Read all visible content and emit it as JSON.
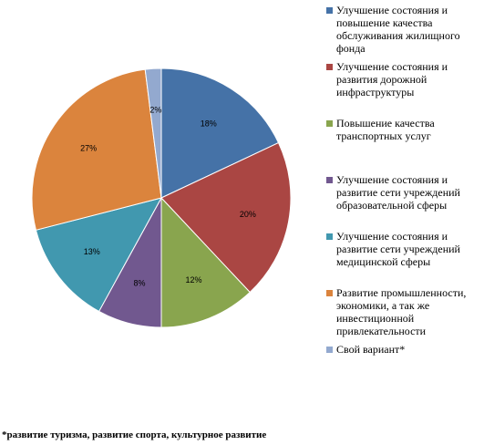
{
  "chart_data": {
    "type": "pie",
    "categories": [
      "Улучшение состояния и повышение качества обслуживания жилищного фонда",
      "Улучшение состояния и развития дорожной инфраструктуры",
      "Повышение качества транспортных услуг",
      "Улучшение состояния и развитие сети учреждений образовательной сферы",
      "Улучшение состояния и развитие сети учреждений медицинской сферы",
      "Развитие промышленности, экономики, а так же инвестиционной привлекательности",
      "Свой вариант*"
    ],
    "values": [
      18,
      20,
      12,
      8,
      13,
      27,
      2
    ],
    "value_labels": [
      "18%",
      "20%",
      "12%",
      "8%",
      "13%",
      "27%",
      "2%"
    ],
    "colors": [
      "#4572A7",
      "#AA4643",
      "#89A54E",
      "#71588F",
      "#4198AF",
      "#DB843D",
      "#93A9CF"
    ],
    "legend_placement": "right"
  },
  "footnote": "*развитие туризма, развитие спорта, культурное развитие"
}
